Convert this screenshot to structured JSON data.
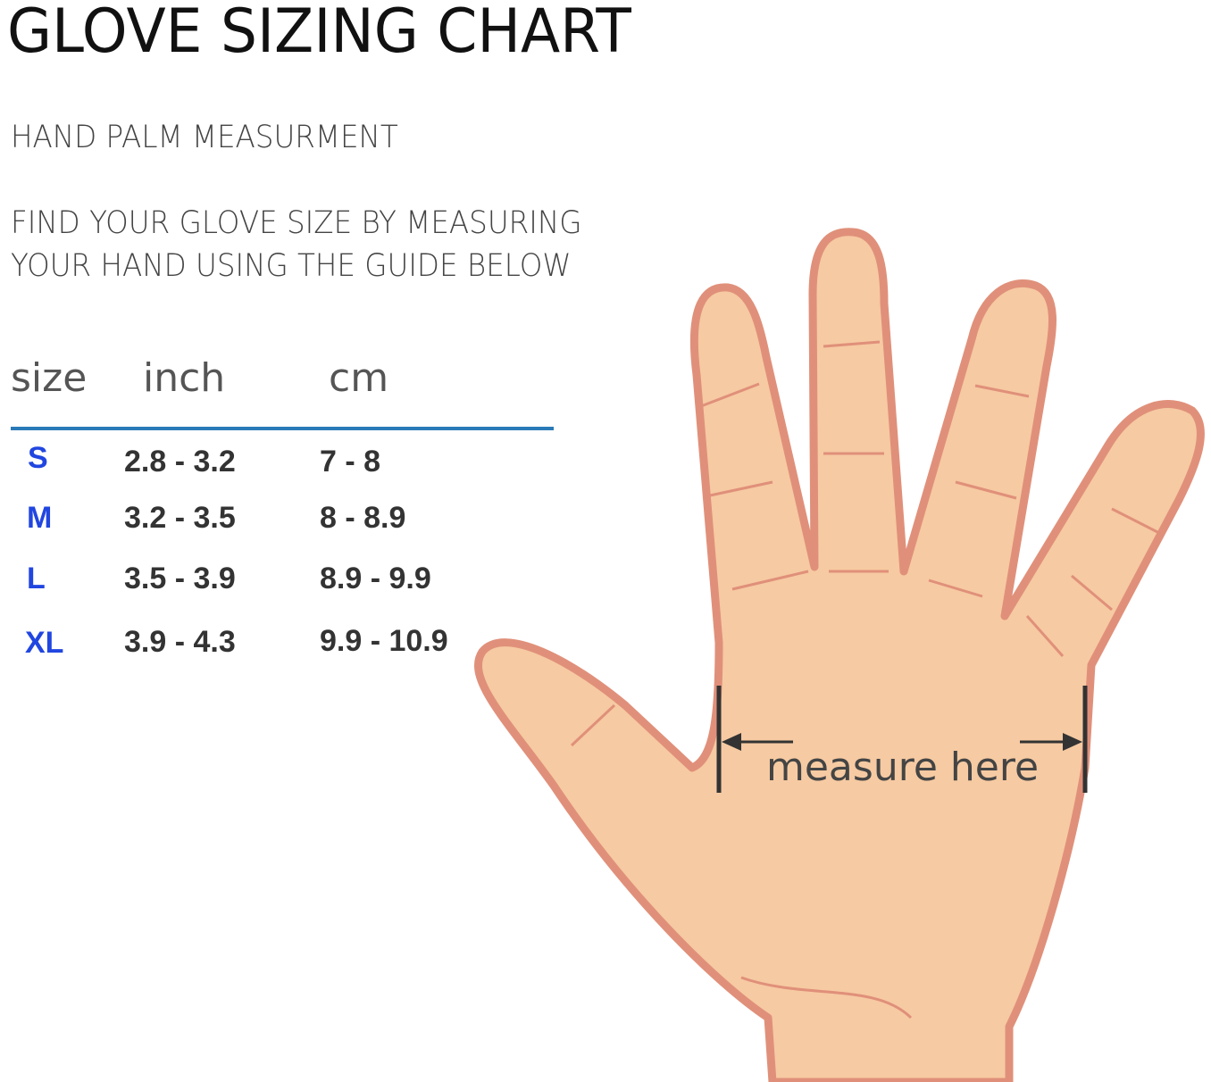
{
  "title": "GLOVE SIZING CHART",
  "subtitle": "HAND PALM MEASURMENT",
  "instruction_line1": "FIND YOUR GLOVE SIZE BY MEASURING",
  "instruction_line2": "YOUR HAND USING THE GUIDE BELOW",
  "table": {
    "headers": [
      "size",
      "inch",
      "cm"
    ],
    "rows": [
      {
        "size": "S",
        "inch": "2.8 - 3.2",
        "cm": "7 - 8"
      },
      {
        "size": "M",
        "inch": "3.2 - 3.5",
        "cm": "8 - 8.9"
      },
      {
        "size": "L",
        "inch": "3.5 - 3.9",
        "cm": "8.9 - 9.9"
      },
      {
        "size": "XL",
        "inch": "3.9 - 4.3",
        "cm": "9.9 - 10.9"
      }
    ]
  },
  "illustration": {
    "label": "measure here",
    "skin_color": "#f6caa2",
    "outline_color": "#e0907a"
  },
  "colors": {
    "size_label": "#2146e0",
    "rule": "#2a7ab8"
  }
}
